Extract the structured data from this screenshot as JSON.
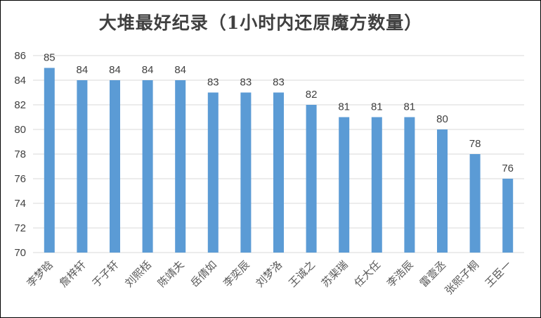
{
  "chart_data": {
    "type": "bar",
    "title": "大堆最好纪录（1小时内还原魔方数量）",
    "xlabel": "",
    "ylabel": "",
    "categories": [
      "李梦晗",
      "詹梓轩",
      "于子轩",
      "刘熙栝",
      "陈靖夫",
      "岳倩如",
      "李奕辰",
      "刘梦洛",
      "王诚之",
      "苏棐瑞",
      "任大任",
      "李浩辰",
      "雷壹丞",
      "张熙子桐",
      "王臣一"
    ],
    "values": [
      85,
      84,
      84,
      84,
      84,
      83,
      83,
      83,
      82,
      81,
      81,
      81,
      80,
      78,
      76
    ],
    "ylim": [
      70,
      86
    ],
    "yticks": [
      "70",
      "72",
      "74",
      "76",
      "78",
      "80",
      "82",
      "84",
      "86"
    ],
    "grid": true,
    "legend": "none",
    "colors": {
      "bar": "#5B9BD5",
      "grid": "#D9D9D9",
      "text": "#404040"
    }
  }
}
